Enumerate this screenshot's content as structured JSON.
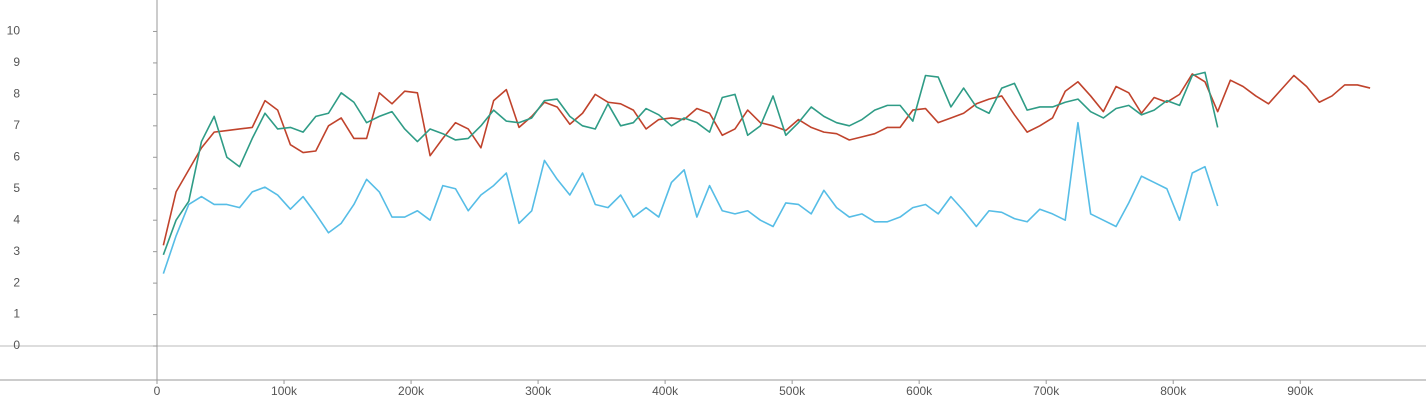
{
  "chart_data": {
    "type": "line",
    "x": [
      5000,
      15000,
      25000,
      35000,
      45000,
      55000,
      65000,
      75000,
      85000,
      95000,
      105000,
      115000,
      125000,
      135000,
      145000,
      155000,
      165000,
      175000,
      185000,
      195000,
      205000,
      215000,
      225000,
      235000,
      245000,
      255000,
      265000,
      275000,
      285000,
      295000,
      305000,
      315000,
      325000,
      335000,
      345000,
      355000,
      365000,
      375000,
      385000,
      395000,
      405000,
      415000,
      425000,
      435000,
      445000,
      455000,
      465000,
      475000,
      485000,
      495000,
      505000,
      515000,
      525000,
      535000,
      545000,
      555000,
      565000,
      575000,
      585000,
      595000,
      605000,
      615000,
      625000,
      635000,
      645000,
      655000,
      665000,
      675000,
      685000,
      695000,
      705000,
      715000,
      725000,
      735000,
      745000,
      755000,
      765000,
      775000,
      785000,
      795000,
      805000,
      815000,
      825000,
      835000,
      845000,
      855000,
      865000,
      875000,
      885000,
      895000,
      905000,
      915000,
      925000,
      935000,
      945000,
      955000
    ],
    "series": [
      {
        "color": "#c0432c",
        "values": [
          3.2,
          4.9,
          5.6,
          6.3,
          6.8,
          6.85,
          6.9,
          6.95,
          7.8,
          7.5,
          6.4,
          6.15,
          6.2,
          7.0,
          7.25,
          6.6,
          6.6,
          8.05,
          7.7,
          8.1,
          8.05,
          6.05,
          6.6,
          7.1,
          6.9,
          6.3,
          7.8,
          8.15,
          6.95,
          7.3,
          7.75,
          7.6,
          7.05,
          7.4,
          8.0,
          7.75,
          7.7,
          7.5,
          6.9,
          7.2,
          7.25,
          7.2,
          7.55,
          7.4,
          6.7,
          6.9,
          7.5,
          7.1,
          7.0,
          6.85,
          7.2,
          6.95,
          6.8,
          6.75,
          6.55,
          6.65,
          6.75,
          6.95,
          6.95,
          7.5,
          7.55,
          7.1,
          7.25,
          7.4,
          7.7,
          7.85,
          7.95,
          7.35,
          6.8,
          7.0,
          7.25,
          8.1,
          8.4,
          7.95,
          7.45,
          8.25,
          8.05,
          7.4,
          7.9,
          7.75,
          8.0,
          8.65,
          8.4,
          7.45,
          8.45,
          8.25,
          7.95,
          7.7,
          8.15,
          8.6,
          8.25,
          7.75,
          7.95,
          8.3,
          8.3,
          8.2
        ]
      },
      {
        "color": "#2f9c86",
        "values": [
          2.9,
          4.0,
          4.6,
          6.5,
          7.3,
          6.0,
          5.7,
          6.6,
          7.4,
          6.9,
          6.95,
          6.8,
          7.3,
          7.4,
          8.05,
          7.75,
          7.1,
          7.3,
          7.45,
          6.9,
          6.5,
          6.9,
          6.75,
          6.55,
          6.6,
          7.0,
          7.5,
          7.15,
          7.1,
          7.25,
          7.8,
          7.85,
          7.3,
          7.0,
          6.9,
          7.7,
          7.0,
          7.1,
          7.55,
          7.35,
          7.0,
          7.25,
          7.1,
          6.8,
          7.9,
          8.0,
          6.7,
          7.0,
          7.95,
          6.7,
          7.1,
          7.6,
          7.3,
          7.1,
          7.0,
          7.2,
          7.5,
          7.65,
          7.65,
          7.15,
          8.6,
          8.55,
          7.6,
          8.2,
          7.6,
          7.4,
          8.2,
          8.35,
          7.5,
          7.6,
          7.6,
          7.75,
          7.85,
          7.45,
          7.25,
          7.55,
          7.65,
          7.35,
          7.5,
          7.8,
          7.65,
          8.6,
          8.7,
          6.95,
          null,
          null,
          null,
          null,
          null,
          null,
          null,
          null,
          null,
          null,
          null,
          null
        ]
      },
      {
        "color": "#56bde6",
        "values": [
          2.3,
          3.5,
          4.5,
          4.75,
          4.5,
          4.5,
          4.4,
          4.9,
          5.05,
          4.8,
          4.35,
          4.75,
          4.2,
          3.6,
          3.9,
          4.5,
          5.3,
          4.9,
          4.1,
          4.1,
          4.3,
          4.0,
          5.1,
          5.0,
          4.3,
          4.8,
          5.1,
          5.5,
          3.9,
          4.3,
          5.9,
          5.3,
          4.8,
          5.5,
          4.5,
          4.4,
          4.8,
          4.1,
          4.4,
          4.1,
          5.2,
          5.6,
          4.1,
          5.1,
          4.3,
          4.2,
          4.3,
          4.0,
          3.8,
          4.55,
          4.5,
          4.2,
          4.95,
          4.4,
          4.1,
          4.2,
          3.95,
          3.95,
          4.1,
          4.4,
          4.5,
          4.2,
          4.75,
          4.3,
          3.8,
          4.3,
          4.25,
          4.05,
          3.95,
          4.35,
          4.2,
          4.0,
          7.1,
          4.2,
          4.0,
          3.8,
          4.55,
          5.4,
          5.2,
          5.0,
          4.0,
          5.5,
          5.7,
          4.45,
          null,
          null,
          null,
          null,
          null,
          null,
          null,
          null,
          null,
          null,
          null,
          null
        ]
      }
    ],
    "xlim": [
      -123600,
      999000
    ],
    "ylim": [
      -1.08,
      11.0
    ],
    "xticks": [
      0,
      {
        "value": 100000,
        "label": "100k"
      },
      {
        "value": 200000,
        "label": "200k"
      },
      {
        "value": 300000,
        "label": "300k"
      },
      {
        "value": 400000,
        "label": "400k"
      },
      {
        "value": 500000,
        "label": "500k"
      },
      {
        "value": 600000,
        "label": "600k"
      },
      {
        "value": 700000,
        "label": "700k"
      },
      {
        "value": 800000,
        "label": "800k"
      },
      {
        "value": 900000,
        "label": "900k"
      }
    ],
    "yticks": [
      0,
      1,
      2,
      3,
      4,
      5,
      6,
      7,
      8,
      9,
      10
    ]
  }
}
